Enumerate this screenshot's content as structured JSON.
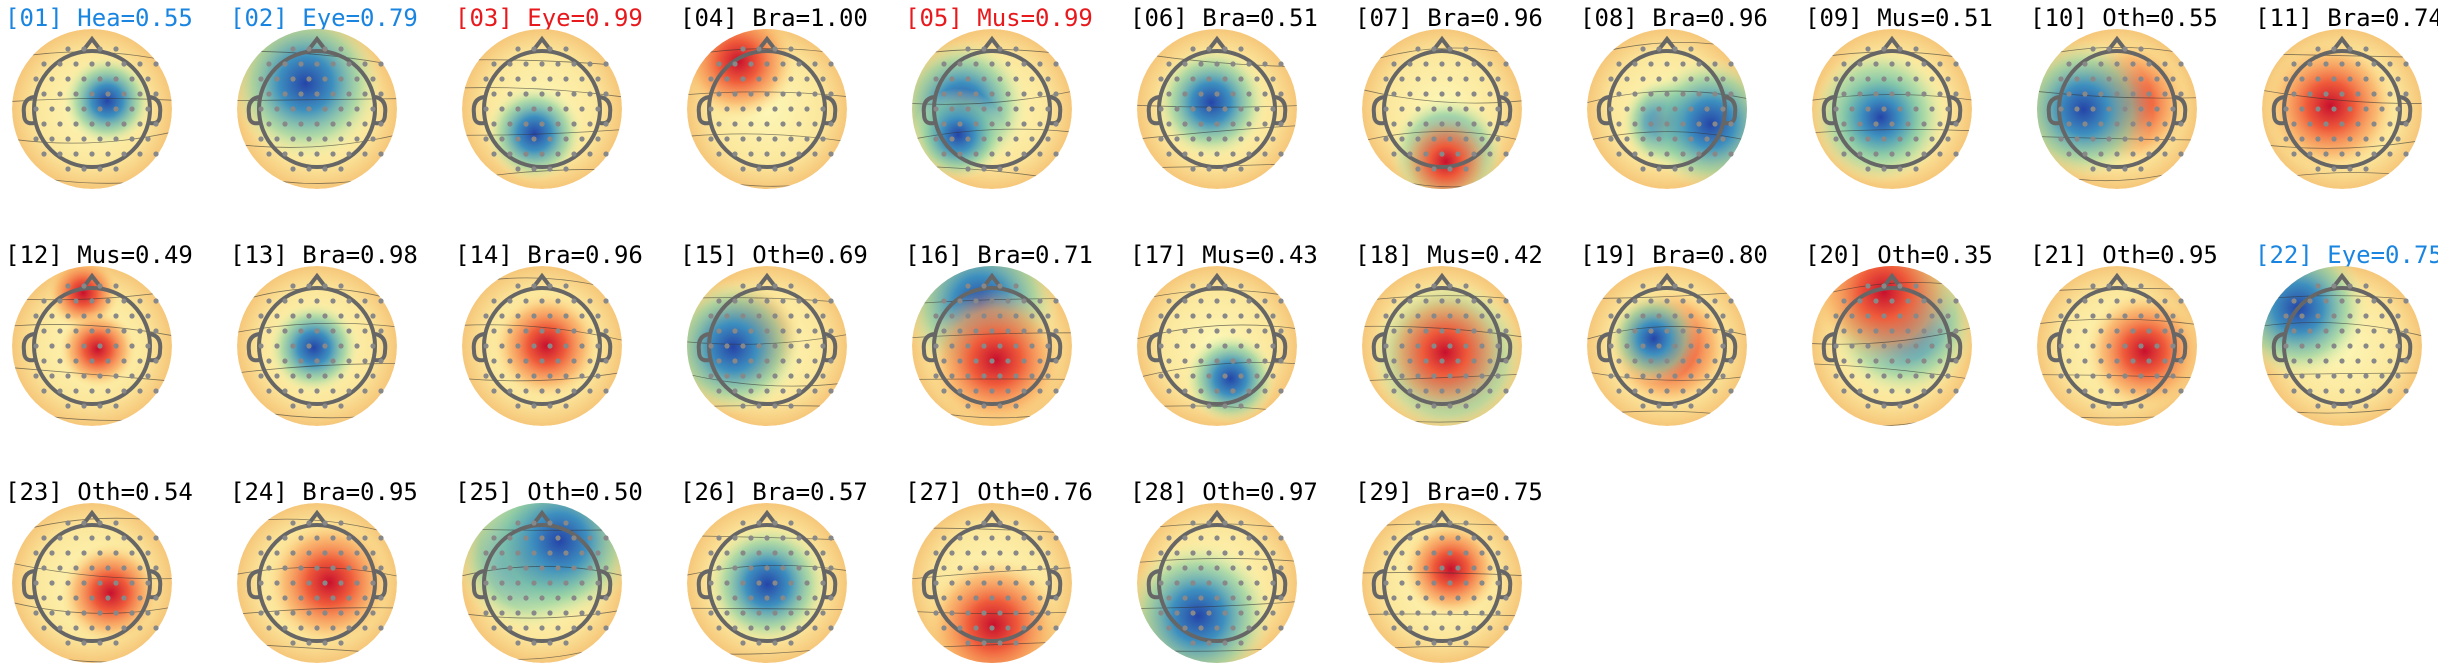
{
  "components": [
    {
      "label": "[01] Hea=0.55",
      "color": "#1a85e0"
    },
    {
      "label": "[02] Eye=0.79",
      "color": "#1a85e0"
    },
    {
      "label": "[03] Eye=0.99",
      "color": "#e8191c"
    },
    {
      "label": "[04] Bra=1.00",
      "color": "#000000"
    },
    {
      "label": "[05] Mus=0.99",
      "color": "#e8191c"
    },
    {
      "label": "[06] Bra=0.51",
      "color": "#000000"
    },
    {
      "label": "[07] Bra=0.96",
      "color": "#000000"
    },
    {
      "label": "[08] Bra=0.96",
      "color": "#000000"
    },
    {
      "label": "[09] Mus=0.51",
      "color": "#000000"
    },
    {
      "label": "[10] Oth=0.55",
      "color": "#000000"
    },
    {
      "label": "[11] Bra=0.74",
      "color": "#000000"
    },
    {
      "label": "[12] Mus=0.49",
      "color": "#000000"
    },
    {
      "label": "[13] Bra=0.98",
      "color": "#000000"
    },
    {
      "label": "[14] Bra=0.96",
      "color": "#000000"
    },
    {
      "label": "[15] Oth=0.69",
      "color": "#000000"
    },
    {
      "label": "[16] Bra=0.71",
      "color": "#000000"
    },
    {
      "label": "[17] Mus=0.43",
      "color": "#000000"
    },
    {
      "label": "[18] Mus=0.42",
      "color": "#000000"
    },
    {
      "label": "[19] Bra=0.80",
      "color": "#000000"
    },
    {
      "label": "[20] Oth=0.35",
      "color": "#000000"
    },
    {
      "label": "[21] Oth=0.95",
      "color": "#000000"
    },
    {
      "label": "[22] Eye=0.75",
      "color": "#1a85e0"
    },
    {
      "label": "[23] Oth=0.54",
      "color": "#000000"
    },
    {
      "label": "[24] Bra=0.95",
      "color": "#000000"
    },
    {
      "label": "[25] Oth=0.50",
      "color": "#000000"
    },
    {
      "label": "[26] Bra=0.57",
      "color": "#000000"
    },
    {
      "label": "[27] Oth=0.76",
      "color": "#000000"
    },
    {
      "label": "[28] Oth=0.97",
      "color": "#000000"
    },
    {
      "label": "[29] Bra=0.75",
      "color": "#000000"
    }
  ]
}
